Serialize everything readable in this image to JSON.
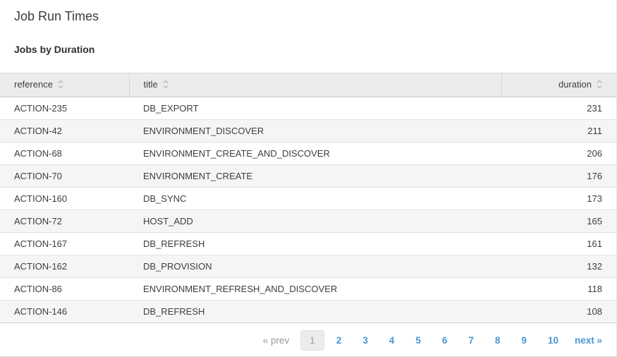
{
  "page": {
    "title": "Job Run Times",
    "subtitle": "Jobs by Duration"
  },
  "table": {
    "columns": [
      {
        "key": "reference",
        "label": "reference",
        "sortable": true,
        "align": "left"
      },
      {
        "key": "title",
        "label": "title",
        "sortable": true,
        "align": "left"
      },
      {
        "key": "duration",
        "label": "duration",
        "sortable": true,
        "align": "right"
      }
    ],
    "rows": [
      {
        "reference": "ACTION-235",
        "title": "DB_EXPORT",
        "duration": 231
      },
      {
        "reference": "ACTION-42",
        "title": "ENVIRONMENT_DISCOVER",
        "duration": 211
      },
      {
        "reference": "ACTION-68",
        "title": "ENVIRONMENT_CREATE_AND_DISCOVER",
        "duration": 206
      },
      {
        "reference": "ACTION-70",
        "title": "ENVIRONMENT_CREATE",
        "duration": 176
      },
      {
        "reference": "ACTION-160",
        "title": "DB_SYNC",
        "duration": 173
      },
      {
        "reference": "ACTION-72",
        "title": "HOST_ADD",
        "duration": 165
      },
      {
        "reference": "ACTION-167",
        "title": "DB_REFRESH",
        "duration": 161
      },
      {
        "reference": "ACTION-162",
        "title": "DB_PROVISION",
        "duration": 132
      },
      {
        "reference": "ACTION-86",
        "title": "ENVIRONMENT_REFRESH_AND_DISCOVER",
        "duration": 118
      },
      {
        "reference": "ACTION-146",
        "title": "DB_REFRESH",
        "duration": 108
      }
    ]
  },
  "pagination": {
    "prev_label": "« prev",
    "next_label": "next »",
    "pages": [
      "1",
      "2",
      "3",
      "4",
      "5",
      "6",
      "7",
      "8",
      "9",
      "10"
    ],
    "current_page": "1"
  },
  "icons": {
    "sort": "sort-icon"
  },
  "colors": {
    "link_blue": "#4a96d2",
    "header_bg": "#ececec",
    "row_alt_bg": "#f5f5f5",
    "current_page_bg": "#ececec",
    "text": "#3d3d3d",
    "muted_gray": "#9a9a9a",
    "sort_icon_gray": "#b4b4b4"
  }
}
